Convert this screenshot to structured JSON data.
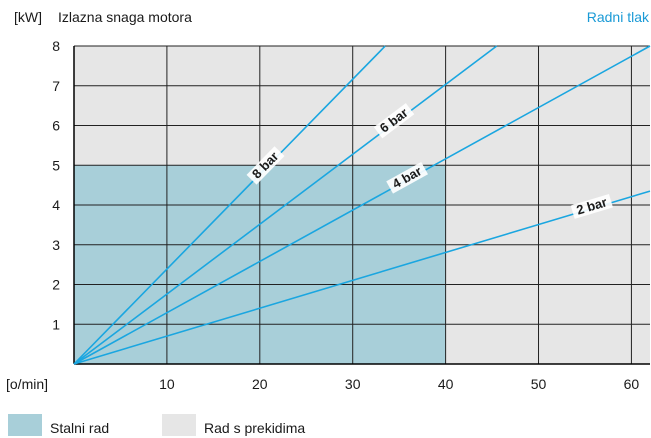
{
  "chart_data": {
    "type": "line",
    "y_unit": "[kW]",
    "title": "Izlazna snaga motora",
    "corner_label": "Radni tlak",
    "x_unit": "[o/min]",
    "xlim": [
      0,
      62
    ],
    "ylim": [
      0,
      8
    ],
    "x_ticks": [
      "10",
      "20",
      "30",
      "40",
      "50",
      "60"
    ],
    "x_tick_values": [
      10,
      20,
      30,
      40,
      50,
      60
    ],
    "y_ticks": [
      "1",
      "2",
      "3",
      "4",
      "5",
      "6",
      "7",
      "8"
    ],
    "y_tick_values": [
      1,
      2,
      3,
      4,
      5,
      6,
      7,
      8
    ],
    "grid": true,
    "series": [
      {
        "name": "8 bar",
        "x": [
          0,
          33.5
        ],
        "y": [
          0,
          8
        ]
      },
      {
        "name": "6 bar",
        "x": [
          0,
          45.5
        ],
        "y": [
          0,
          8
        ]
      },
      {
        "name": "4 bar",
        "x": [
          0,
          62
        ],
        "y": [
          0,
          8
        ]
      },
      {
        "name": "2 bar",
        "x": [
          0,
          62
        ],
        "y": [
          0,
          4.35
        ]
      }
    ],
    "regions": [
      {
        "name": "Stalni rad",
        "x": [
          0,
          40
        ],
        "y": [
          0,
          5
        ],
        "color": "#a8cfd9"
      },
      {
        "name": "Rad s prekidima",
        "color": "#e6e6e6"
      }
    ],
    "colors": {
      "line": "#1aa6e0",
      "accent_text": "#1a9ad6",
      "background": "#e6e6e6",
      "grid": "#222222"
    }
  }
}
